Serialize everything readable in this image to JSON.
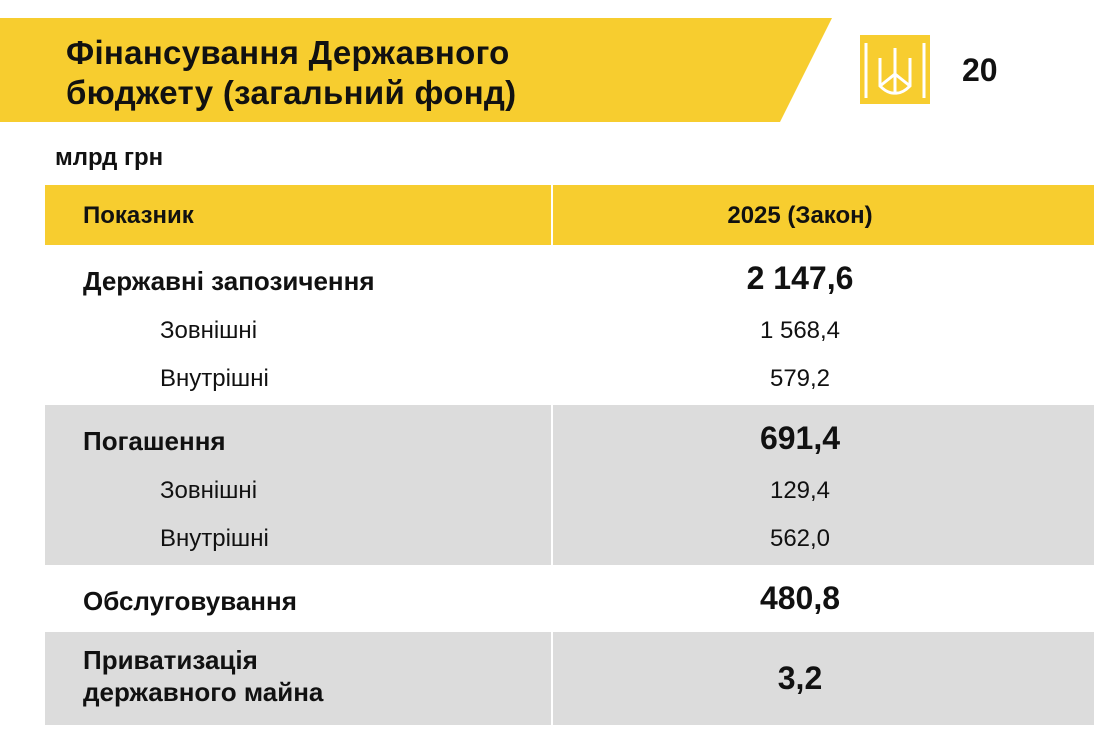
{
  "header": {
    "title_lines": [
      "Фінансування Державного",
      "бюджету (загальний фонд)"
    ],
    "page_number": "20"
  },
  "unit": "млрд грн",
  "table": {
    "columns": [
      "Показник",
      "2025 (Закон)"
    ],
    "groups": [
      {
        "label": "Державні запозичення",
        "value": "2 147,6",
        "items": [
          {
            "label": "Зовнішні",
            "value": "1 568,4"
          },
          {
            "label": "Внутрішні",
            "value": "579,2"
          }
        ]
      },
      {
        "label": "Погашення",
        "value": "691,4",
        "items": [
          {
            "label": "Зовнішні",
            "value": "129,4"
          },
          {
            "label": "Внутрішні",
            "value": "562,0"
          }
        ]
      },
      {
        "label": "Обслуговування",
        "value": "480,8",
        "items": []
      },
      {
        "label": "Приватизація державного майна",
        "value": "3,2",
        "items": []
      }
    ]
  }
}
